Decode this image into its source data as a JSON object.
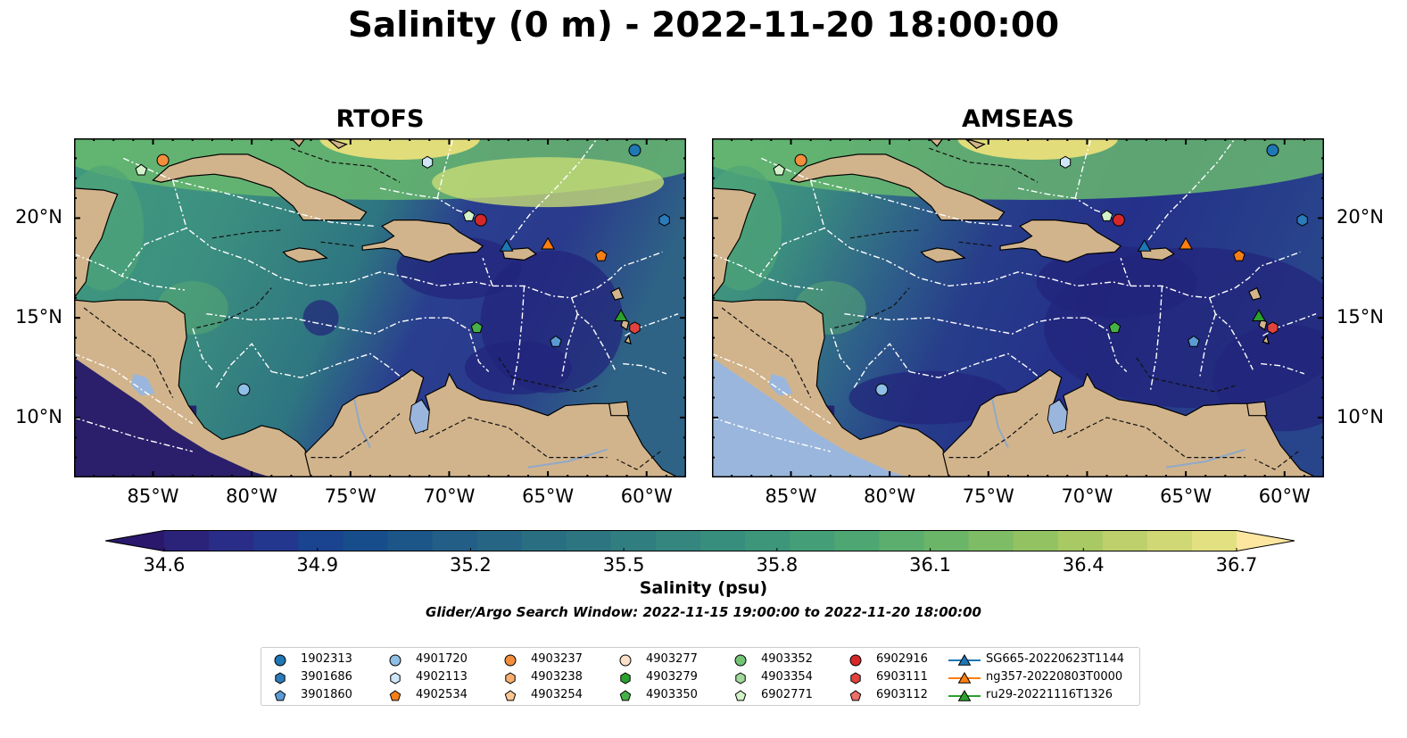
{
  "title": "Salinity (0 m) - 2022-11-20 18:00:00",
  "panels": [
    {
      "title": "RTOFS",
      "model": "rtofs"
    },
    {
      "title": "AMSEAS",
      "model": "amseas"
    }
  ],
  "axes": {
    "lon_ticks": [
      "85°W",
      "80°W",
      "75°W",
      "70°W",
      "65°W",
      "60°W"
    ],
    "lat_ticks": [
      "20°N",
      "15°N",
      "10°N"
    ],
    "lon_values": [
      -85,
      -80,
      -75,
      -70,
      -65,
      -60
    ],
    "lat_values": [
      20,
      15,
      10
    ],
    "lon_range": [
      -89,
      -58
    ],
    "lat_range": [
      7,
      24
    ]
  },
  "colorbar": {
    "label": "Salinity (psu)",
    "ticks": [
      "34.6",
      "34.9",
      "35.2",
      "35.5",
      "35.8",
      "36.1",
      "36.4",
      "36.7"
    ],
    "min": 34.6,
    "max": 36.7,
    "extend": "both",
    "colormap": "haline"
  },
  "subtitle": "Glider/Argo Search Window: 2022-11-15 19:00:00 to 2022-11-20 18:00:00",
  "colors": {
    "land": "#d2b48c",
    "lake": "#9ab6dc",
    "eez_lines": "#ffffff"
  },
  "legend": [
    {
      "label": "1902313",
      "marker": "circle",
      "color": "#1f77b4"
    },
    {
      "label": "3901686",
      "marker": "hexagon",
      "color": "#2b7bba"
    },
    {
      "label": "3901860",
      "marker": "pentagon",
      "color": "#5b9bd5"
    },
    {
      "label": "4901720",
      "marker": "circle",
      "color": "#8fbfe6"
    },
    {
      "label": "4902113",
      "marker": "hexagon",
      "color": "#cfe6f7"
    },
    {
      "label": "4902534",
      "marker": "pentagon",
      "color": "#f57f17"
    },
    {
      "label": "4903237",
      "marker": "circle",
      "color": "#f28e3c"
    },
    {
      "label": "4903238",
      "marker": "hexagon",
      "color": "#f7ae6e"
    },
    {
      "label": "4903254",
      "marker": "pentagon",
      "color": "#fbc793"
    },
    {
      "label": "4903277",
      "marker": "circle",
      "color": "#fde0c8"
    },
    {
      "label": "4903279",
      "marker": "hexagon",
      "color": "#2ca02c"
    },
    {
      "label": "4903350",
      "marker": "pentagon",
      "color": "#46b146"
    },
    {
      "label": "4903352",
      "marker": "circle",
      "color": "#74c476"
    },
    {
      "label": "4903354",
      "marker": "hexagon",
      "color": "#a1d99b"
    },
    {
      "label": "6902771",
      "marker": "pentagon",
      "color": "#d4f2c9"
    },
    {
      "label": "6902916",
      "marker": "circle",
      "color": "#d62728"
    },
    {
      "label": "6903111",
      "marker": "hexagon",
      "color": "#e0433e"
    },
    {
      "label": "6903112",
      "marker": "pentagon",
      "color": "#ee6e6a"
    },
    {
      "label": "SG665-20220623T1144",
      "marker": "triangle-line",
      "color": "#1f77b4"
    },
    {
      "label": "ng357-20220803T0000",
      "marker": "triangle-line",
      "color": "#ff7f0e"
    },
    {
      "label": "ru29-20221116T1326",
      "marker": "triangle-line",
      "color": "#2ca02c"
    }
  ],
  "platforms": [
    {
      "id": "1902313",
      "lon": -60.6,
      "lat": 23.4,
      "marker": "circle",
      "color": "#1f77b4"
    },
    {
      "id": "3901686",
      "lon": -59.1,
      "lat": 19.9,
      "marker": "hexagon",
      "color": "#2b7bba"
    },
    {
      "id": "3901860",
      "lon": -64.6,
      "lat": 13.8,
      "marker": "pentagon",
      "color": "#5b9bd5"
    },
    {
      "id": "4901720",
      "lon": -80.4,
      "lat": 11.4,
      "marker": "circle",
      "color": "#8fbfe6"
    },
    {
      "id": "4902113",
      "lon": -71.1,
      "lat": 22.8,
      "marker": "hexagon",
      "color": "#cfe6f7"
    },
    {
      "id": "4902534",
      "lon": -62.3,
      "lat": 18.1,
      "marker": "pentagon",
      "color": "#f57f17"
    },
    {
      "id": "4903237",
      "lon": -84.5,
      "lat": 22.9,
      "marker": "circle",
      "color": "#f28e3c"
    },
    {
      "id": "4903350",
      "lon": -68.6,
      "lat": 14.5,
      "marker": "pentagon",
      "color": "#46b146"
    },
    {
      "id": "6902771",
      "lon": -69.0,
      "lat": 20.1,
      "marker": "pentagon",
      "color": "#d4f2c9"
    },
    {
      "id": "6902771b",
      "lon": -85.6,
      "lat": 22.4,
      "marker": "pentagon",
      "color": "#d4f2c9"
    },
    {
      "id": "6902916",
      "lon": -68.4,
      "lat": 19.9,
      "marker": "circle",
      "color": "#d62728"
    },
    {
      "id": "6903111",
      "lon": -60.6,
      "lat": 14.5,
      "marker": "hexagon",
      "color": "#e0433e"
    },
    {
      "id": "SG665",
      "lon": -67.1,
      "lat": 18.6,
      "marker": "triangle",
      "color": "#1f77b4"
    },
    {
      "id": "ng357",
      "lon": -65.0,
      "lat": 18.7,
      "marker": "triangle",
      "color": "#ff7f0e"
    },
    {
      "id": "ru29",
      "lon": -61.3,
      "lat": 15.1,
      "marker": "triangle",
      "color": "#2ca02c"
    }
  ]
}
